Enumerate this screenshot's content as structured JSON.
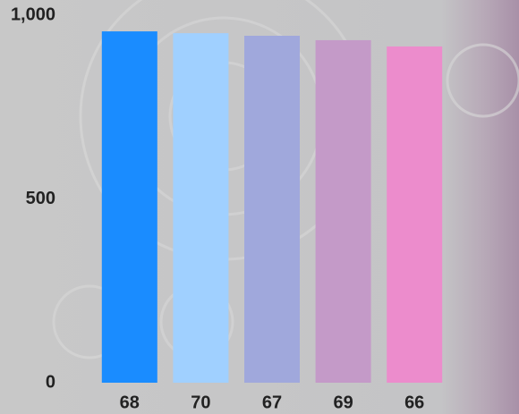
{
  "chart_data": {
    "type": "bar",
    "categories": [
      "68",
      "70",
      "67",
      "69",
      "66"
    ],
    "values": [
      956,
      951,
      944,
      932,
      915
    ],
    "colors": [
      "#1a8cff",
      "#a0d0ff",
      "#a0a8dc",
      "#c49ac8",
      "#ec8ccc"
    ],
    "ylim": [
      0,
      1000
    ],
    "yticks": [
      0,
      500,
      {
        "value": 1000,
        "label": "1,000"
      }
    ],
    "grid": false
  }
}
